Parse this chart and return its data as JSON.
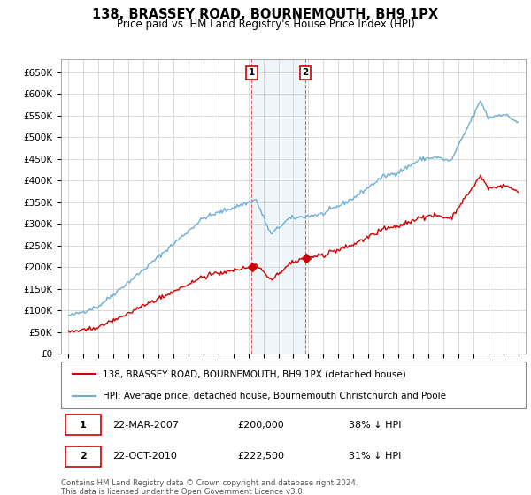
{
  "title": "138, BRASSEY ROAD, BOURNEMOUTH, BH9 1PX",
  "subtitle": "Price paid vs. HM Land Registry's House Price Index (HPI)",
  "legend_text1": "138, BRASSEY ROAD, BOURNEMOUTH, BH9 1PX (detached house)",
  "legend_text2": "HPI: Average price, detached house, Bournemouth Christchurch and Poole",
  "footnote": "Contains HM Land Registry data © Crown copyright and database right 2024.\nThis data is licensed under the Open Government Licence v3.0.",
  "sale1_date": "22-MAR-2007",
  "sale1_price": "£200,000",
  "sale1_hpi": "38% ↓ HPI",
  "sale1_year": 2007.22,
  "sale1_value": 200000,
  "sale2_date": "22-OCT-2010",
  "sale2_price": "£222,500",
  "sale2_hpi": "31% ↓ HPI",
  "sale2_year": 2010.8,
  "sale2_value": 222500,
  "hpi_color": "#6baed6",
  "price_color": "#cc0000",
  "marker_color": "#cc0000",
  "background_color": "#ffffff",
  "grid_color": "#cccccc",
  "annotation_box_color": "#cc0000",
  "ylim": [
    0,
    680000
  ],
  "yticks": [
    0,
    50000,
    100000,
    150000,
    200000,
    250000,
    300000,
    350000,
    400000,
    450000,
    500000,
    550000,
    600000,
    650000
  ],
  "ytick_labels": [
    "£0",
    "£50K",
    "£100K",
    "£150K",
    "£200K",
    "£250K",
    "£300K",
    "£350K",
    "£400K",
    "£450K",
    "£500K",
    "£550K",
    "£600K",
    "£650K"
  ],
  "xlim_start": 1994.5,
  "xlim_end": 2025.5,
  "xticks": [
    1995,
    1996,
    1997,
    1998,
    1999,
    2000,
    2001,
    2002,
    2003,
    2004,
    2005,
    2006,
    2007,
    2008,
    2009,
    2010,
    2011,
    2012,
    2013,
    2014,
    2015,
    2016,
    2017,
    2018,
    2019,
    2020,
    2021,
    2022,
    2023,
    2024,
    2025
  ]
}
